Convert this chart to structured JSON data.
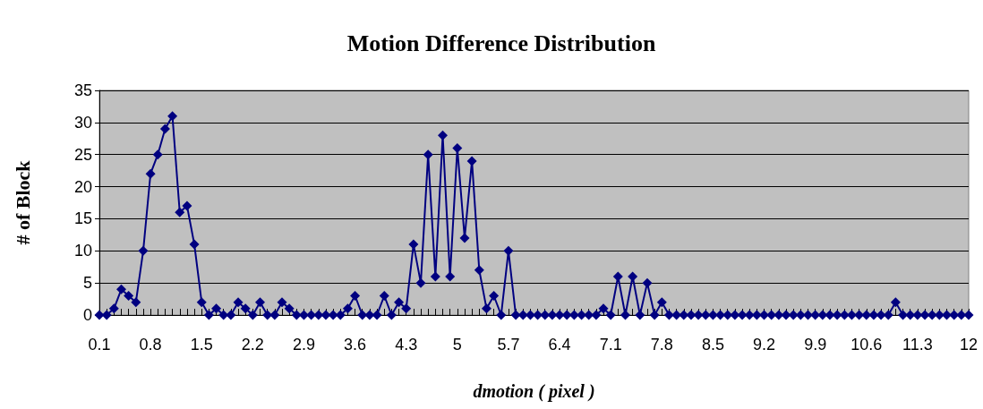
{
  "chart_data": {
    "type": "line",
    "title": "Motion Difference Distribution",
    "xlabel": "dmotion ( pixel )",
    "ylabel": "# of Block",
    "categories": [
      "0.1",
      null,
      null,
      null,
      null,
      null,
      null,
      "0.8",
      null,
      null,
      null,
      null,
      null,
      null,
      "1.5",
      null,
      null,
      null,
      null,
      null,
      null,
      "2.2",
      null,
      null,
      null,
      null,
      null,
      null,
      "2.9",
      null,
      null,
      null,
      null,
      null,
      null,
      "3.6",
      null,
      null,
      null,
      null,
      null,
      null,
      "4.3",
      null,
      null,
      null,
      null,
      null,
      null,
      "5",
      null,
      null,
      null,
      null,
      null,
      null,
      "5.7",
      null,
      null,
      null,
      null,
      null,
      null,
      "6.4",
      null,
      null,
      null,
      null,
      null,
      null,
      "7.1",
      null,
      null,
      null,
      null,
      null,
      null,
      "7.8",
      null,
      null,
      null,
      null,
      null,
      null,
      "8.5",
      null,
      null,
      null,
      null,
      null,
      null,
      "9.2",
      null,
      null,
      null,
      null,
      null,
      null,
      "9.9",
      null,
      null,
      null,
      null,
      null,
      null,
      "10.6",
      null,
      null,
      null,
      null,
      null,
      null,
      "11.3",
      null,
      null,
      null,
      null,
      null,
      null,
      "12"
    ],
    "series": [
      {
        "color": "#000080",
        "values": [
          0,
          0,
          1,
          4,
          3,
          2,
          10,
          22,
          25,
          29,
          31,
          16,
          17,
          11,
          2,
          0,
          1,
          0,
          0,
          2,
          1,
          0,
          2,
          0,
          0,
          2,
          1,
          0,
          0,
          0,
          0,
          0,
          0,
          0,
          1,
          3,
          0,
          0,
          0,
          3,
          0,
          2,
          1,
          11,
          5,
          25,
          6,
          28,
          6,
          26,
          12,
          24,
          7,
          1,
          3,
          0,
          10,
          0,
          0,
          0,
          0,
          0,
          0,
          0,
          0,
          0,
          0,
          0,
          0,
          1,
          0,
          6,
          0,
          6,
          0,
          5,
          0,
          2,
          0,
          0,
          0,
          0,
          0,
          0,
          0,
          0,
          0,
          0,
          0,
          0,
          0,
          0,
          0,
          0,
          0,
          0,
          0,
          0,
          0,
          0,
          0,
          0,
          0,
          0,
          0,
          0,
          0,
          0,
          0,
          2,
          0,
          0,
          0,
          0,
          0,
          0,
          0,
          0,
          0,
          0
        ]
      }
    ],
    "ylim": [
      0,
      35
    ],
    "yticks": [
      0,
      5,
      10,
      15,
      20,
      25,
      30,
      35
    ],
    "grid": "y",
    "marker": "diamond",
    "line_style": "solid"
  }
}
